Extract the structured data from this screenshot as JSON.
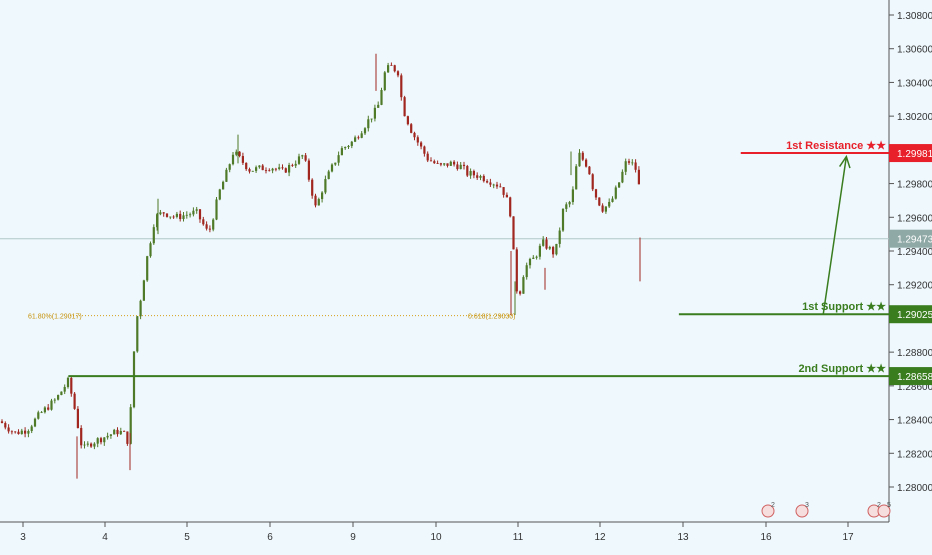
{
  "chart_data": {
    "type": "candlestick",
    "y_ticks": [
      "1.30800",
      "1.30600",
      "1.30400",
      "1.30200",
      "1.30000",
      "1.29800",
      "1.29600",
      "1.29400",
      "1.29200",
      "1.29000",
      "1.28800",
      "1.28600",
      "1.28400",
      "1.28200",
      "1.28000"
    ],
    "x_ticks": [
      "3",
      "4",
      "5",
      "6",
      "9",
      "10",
      "11",
      "12",
      "13",
      "16",
      "17"
    ],
    "ylim": [
      1.2774,
      1.3098
    ],
    "grid": false,
    "current_price": "1.29473",
    "levels": [
      {
        "name": "1st Resistance ★★",
        "value": 1.29981,
        "price_label": "1.29981",
        "color": "#e8202a",
        "start_x": 11.7
      },
      {
        "name": "1st Support ★★",
        "value": 1.29025,
        "price_label": "1.29025",
        "color": "#3a7d1f",
        "start_x": 10.95
      },
      {
        "name": "2nd Support ★★",
        "value": 1.28658,
        "price_label": "1.28658",
        "color": "#3a7d1f",
        "start_x": 3.55
      }
    ],
    "fib_left_label": "61.80%(1.29017)",
    "fib_right_label": "0.618(1.29030)",
    "arrow": {
      "from": [
        12.7,
        1.29025
      ],
      "to": [
        12.98,
        1.2996
      ]
    },
    "event_badges": [
      "2",
      "3",
      "2",
      "5"
    ],
    "colors": {
      "up": "#4f7a28",
      "down": "#a0261f",
      "resistance": "#e8202a",
      "support": "#3a7d1f",
      "price_line": "#b0c8c8"
    },
    "anchors": [
      [
        2.72,
        1.2839
      ],
      [
        2.9,
        1.2832
      ],
      [
        3.05,
        1.2834
      ],
      [
        3.2,
        1.2843
      ],
      [
        3.4,
        1.2852
      ],
      [
        3.55,
        1.2863
      ],
      [
        3.62,
        1.2848
      ],
      [
        3.72,
        1.2822
      ],
      [
        3.82,
        1.2826
      ],
      [
        4.0,
        1.283
      ],
      [
        4.15,
        1.2833
      ],
      [
        4.22,
        1.2832
      ],
      [
        4.28,
        1.2826
      ],
      [
        4.33,
        1.2865
      ],
      [
        4.36,
        1.2895
      ],
      [
        4.42,
        1.291
      ],
      [
        4.5,
        1.2935
      ],
      [
        4.6,
        1.296
      ],
      [
        4.7,
        1.2963
      ],
      [
        4.85,
        1.296
      ],
      [
        5.1,
        1.2963
      ],
      [
        5.25,
        1.295
      ],
      [
        5.38,
        1.2975
      ],
      [
        5.48,
        1.2988
      ],
      [
        5.55,
        1.2999
      ],
      [
        5.75,
        1.2988
      ],
      [
        6.0,
        1.299
      ],
      [
        6.15,
        1.2987
      ],
      [
        6.4,
        1.2997
      ],
      [
        6.55,
        1.2965
      ],
      [
        6.65,
        1.298
      ],
      [
        6.85,
        1.3
      ],
      [
        7.0,
        1.3005
      ],
      [
        7.15,
        1.3015
      ],
      [
        7.3,
        1.3025
      ],
      [
        7.38,
        1.3045
      ],
      [
        7.45,
        1.305
      ],
      [
        7.55,
        1.3046
      ],
      [
        7.6,
        1.3025
      ],
      [
        7.72,
        1.301
      ],
      [
        7.9,
        1.2995
      ],
      [
        8.05,
        1.299
      ],
      [
        8.18,
        1.2992
      ],
      [
        8.32,
        1.299
      ],
      [
        8.38,
        1.2986
      ],
      [
        8.5,
        1.2985
      ],
      [
        8.65,
        1.2982
      ],
      [
        8.8,
        1.2978
      ],
      [
        8.9,
        1.2966
      ],
      [
        8.96,
        1.293
      ],
      [
        9.0,
        1.291
      ],
      [
        9.08,
        1.293
      ],
      [
        9.2,
        1.2936
      ],
      [
        9.3,
        1.2945
      ],
      [
        9.45,
        1.2938
      ],
      [
        9.55,
        1.2965
      ],
      [
        9.65,
        1.297
      ],
      [
        9.73,
        1.2998
      ],
      [
        9.85,
        1.299
      ],
      [
        9.92,
        1.2975
      ],
      [
        10.02,
        1.2965
      ],
      [
        10.12,
        1.2968
      ],
      [
        10.22,
        1.298
      ],
      [
        10.32,
        1.2994
      ],
      [
        10.42,
        1.299
      ],
      [
        10.48,
        1.2975
      ],
      [
        10.55,
        1.2975
      ],
      [
        10.6,
        1.2963
      ],
      [
        10.68,
        1.2942
      ],
      [
        10.71,
        1.2933
      ]
    ],
    "dates_x_raw": [
      3,
      4,
      5,
      6,
      9,
      10,
      11,
      12,
      13,
      16,
      17
    ]
  }
}
